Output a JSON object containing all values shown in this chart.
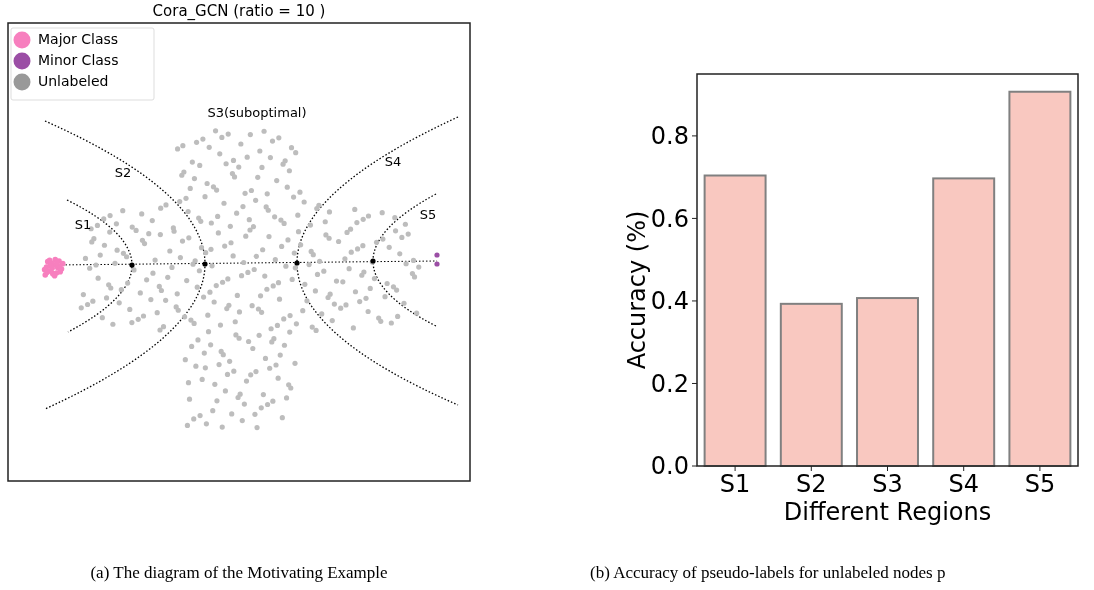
{
  "chart_data": [
    {
      "type": "other",
      "title": "Cora_GCN (ratio = 10 )",
      "annotations": [
        "Major Class",
        "Minor Class",
        "Unlabeled",
        "S3(suboptimal)",
        "S1",
        "S2",
        "S4",
        "S5",
        "(a) The diagram of the Motivating Example"
      ]
    },
    {
      "type": "bar",
      "categories": [
        "S1",
        "S2",
        "S3",
        "S4",
        "S5"
      ],
      "values": [
        0.704,
        0.393,
        0.407,
        0.697,
        0.907
      ],
      "color": "#f9c8c0",
      "ylim": [
        0,
        0.95
      ],
      "yticks": [
        {
          "value": 0,
          "label": "0.0"
        },
        0.2,
        0.4,
        0.6,
        0.8
      ],
      "xlabel": "Different Regions",
      "ylabel": "Accuracy (%)",
      "annotations": [
        "(b) Accuracy of pseudo-labels for unlabeled nodes p"
      ]
    }
  ]
}
